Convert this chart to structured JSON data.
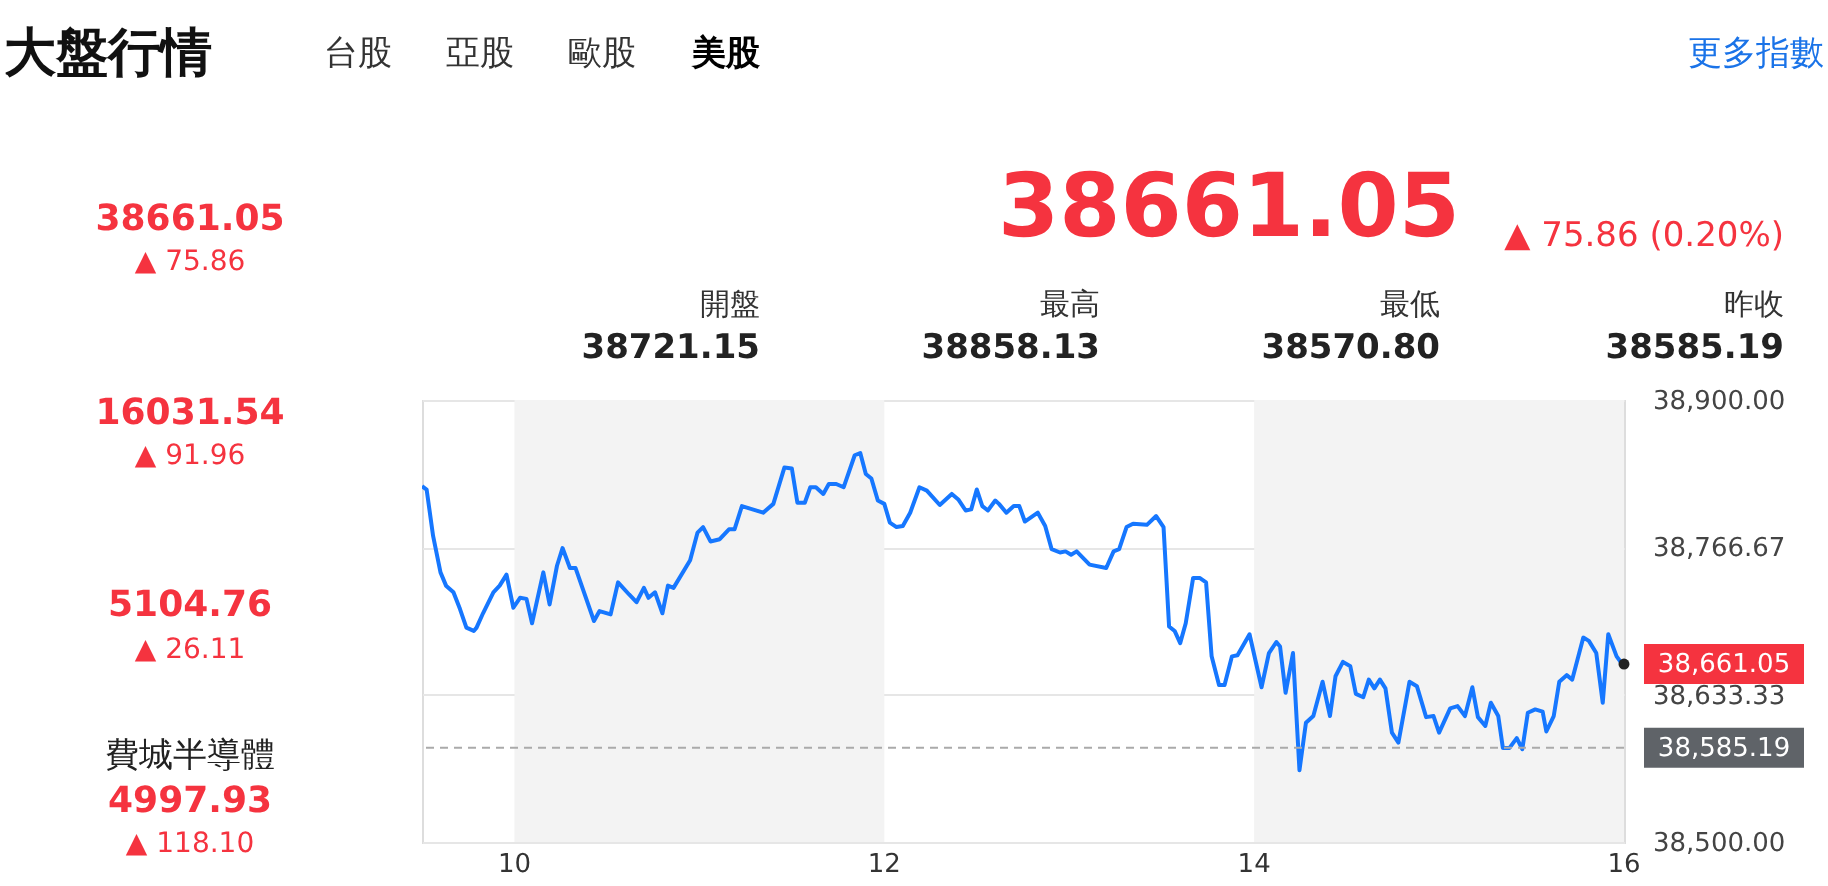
{
  "chart_data": {
    "type": "line",
    "title": "大盤行情",
    "x": [
      9.5,
      9.525,
      9.56,
      9.6,
      9.63,
      9.67,
      9.705,
      9.74,
      9.78,
      9.795,
      9.83,
      9.886,
      9.92,
      9.957,
      9.994,
      10.03,
      10.065,
      10.095,
      10.156,
      10.19,
      10.23,
      10.26,
      10.3,
      10.33,
      10.43,
      10.46,
      10.52,
      10.56,
      10.62,
      10.66,
      10.7,
      10.725,
      10.76,
      10.8,
      10.83,
      10.86,
      10.95,
      10.99,
      11.02,
      11.06,
      11.11,
      11.16,
      11.19,
      11.23,
      11.345,
      11.4,
      11.46,
      11.5,
      11.53,
      11.57,
      11.6,
      11.63,
      11.67,
      11.7,
      11.74,
      11.78,
      11.84,
      11.87,
      11.9,
      11.93,
      11.965,
      12.0,
      12.03,
      12.066,
      12.1,
      12.14,
      12.19,
      12.23,
      12.3,
      12.365,
      12.4,
      12.44,
      12.47,
      12.5,
      12.53,
      12.56,
      12.6,
      12.62,
      12.66,
      12.7,
      12.73,
      12.76,
      12.83,
      12.87,
      12.905,
      12.95,
      12.98,
      13.01,
      13.04,
      13.11,
      13.2,
      13.24,
      13.27,
      13.31,
      13.345,
      13.42,
      13.47,
      13.51,
      13.54,
      13.57,
      13.6,
      13.63,
      13.67,
      13.705,
      13.74,
      13.77,
      13.81,
      13.84,
      13.88,
      13.91,
      13.975,
      14.04,
      14.08,
      14.12,
      14.14,
      14.17,
      14.21,
      14.245,
      14.28,
      14.32,
      14.37,
      14.41,
      14.44,
      14.48,
      14.52,
      14.55,
      14.59,
      14.62,
      14.65,
      14.68,
      14.71,
      14.745,
      14.78,
      14.84,
      14.88,
      14.93,
      14.97,
      15.0,
      15.06,
      15.1,
      15.14,
      15.18,
      15.21,
      15.25,
      15.28,
      15.32,
      15.345,
      15.38,
      15.42,
      15.45,
      15.48,
      15.52,
      15.56,
      15.58,
      15.62,
      15.65,
      15.69,
      15.72,
      15.78,
      15.81,
      15.85,
      15.885,
      15.915,
      15.96,
      15.99
    ],
    "series": [
      {
        "color": "#1677ff",
        "values": [
          38822,
          38819,
          38777,
          38744,
          38732,
          38726,
          38711,
          38694,
          38691,
          38694,
          38707,
          38726,
          38732,
          38742,
          38712,
          38721,
          38720,
          38698,
          38744,
          38715,
          38750,
          38766,
          38748,
          38748,
          38700,
          38709,
          38706,
          38735,
          38724,
          38717,
          38730,
          38721,
          38726,
          38707,
          38732,
          38730,
          38755,
          38780,
          38785,
          38772,
          38774,
          38783,
          38783,
          38804,
          38798,
          38806,
          38839,
          38838,
          38807,
          38807,
          38821,
          38821,
          38815,
          38824,
          38824,
          38821,
          38850,
          38852,
          38833,
          38829,
          38809,
          38806,
          38789,
          38785,
          38786,
          38798,
          38821,
          38818,
          38805,
          38815,
          38810,
          38800,
          38801,
          38819,
          38804,
          38800,
          38809,
          38806,
          38798,
          38804,
          38804,
          38790,
          38798,
          38786,
          38765,
          38762,
          38763,
          38760,
          38763,
          38751,
          38748,
          38763,
          38765,
          38785,
          38788,
          38787,
          38795,
          38785,
          38695,
          38691,
          38680,
          38698,
          38739,
          38739,
          38735,
          38668,
          38642,
          38642,
          38668,
          38669,
          38688,
          38640,
          38671,
          38681,
          38677,
          38635,
          38671,
          38565,
          38608,
          38614,
          38645,
          38614,
          38650,
          38663,
          38659,
          38634,
          38631,
          38647,
          38639,
          38647,
          38639,
          38599,
          38590,
          38645,
          38641,
          38613,
          38614,
          38599,
          38621,
          38623,
          38614,
          38640,
          38613,
          38605,
          38626,
          38614,
          38585,
          38585,
          38594,
          38584,
          38617,
          38620,
          38618,
          38600,
          38614,
          38645,
          38651,
          38647,
          38685,
          38682,
          38671,
          38626,
          38688,
          38668,
          38661.05
        ]
      }
    ],
    "xlim": [
      9.5,
      16
    ],
    "xticks": [
      10,
      12,
      14,
      16
    ],
    "ylim": [
      38500,
      38900
    ],
    "yticks": [
      {
        "value": 38500,
        "label": "38,500.00"
      },
      {
        "value": 38633.33,
        "label": "38,633.33"
      },
      {
        "value": 38766.67,
        "label": "38,766.67"
      },
      {
        "value": 38900,
        "label": "38,900.00"
      }
    ],
    "grid": "y",
    "bands": [
      {
        "axis": "x",
        "from": 10,
        "to": 12,
        "color": "#f3f3f3"
      },
      {
        "axis": "x",
        "from": 14,
        "to": 16,
        "color": "#f3f3f3"
      }
    ],
    "ref_lines": [
      {
        "axis": "y",
        "value": 38585.19,
        "label": "38,585.19",
        "color": "#aaaaaa",
        "line_style": "dashed"
      }
    ],
    "annotations": [
      "台股",
      "亞股",
      "歐股",
      "美股",
      "更多指數",
      "38661.05",
      "▲ 75.86 (0.20%)",
      "開盤",
      "38721.15",
      "最高",
      "38858.13",
      "最低",
      "38570.80",
      "昨收",
      "38585.19",
      "38661.05",
      "▲ 75.86",
      "16031.54",
      "▲ 91.96",
      "5104.76",
      "▲ 26.11",
      "費城半導體",
      "4997.93",
      "▲ 118.10",
      {
        "text": "38,661.05",
        "x": 16,
        "y": 38661.05
      }
    ]
  }
}
